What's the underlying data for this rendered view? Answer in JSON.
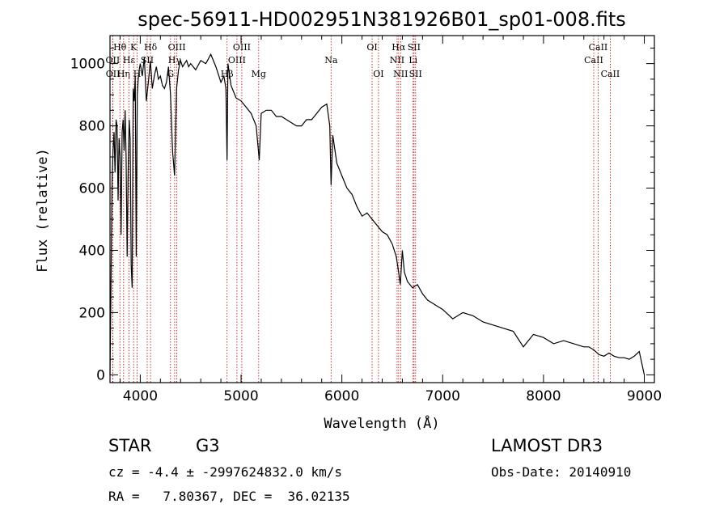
{
  "chart_data": {
    "type": "line",
    "title": "spec-56911-HD002951N381926B01_sp01-008.fits",
    "xlabel": "Wavelength (Å)",
    "ylabel": "Flux (relative)",
    "xlim": [
      3700,
      9100
    ],
    "ylim": [
      -25,
      1090
    ],
    "x_ticks": [
      4000,
      5000,
      6000,
      7000,
      8000,
      9000
    ],
    "y_ticks": [
      0,
      200,
      400,
      600,
      800,
      1000
    ],
    "grid": false,
    "series": [
      {
        "x": [
          3700,
          3710,
          3720,
          3730,
          3740,
          3750,
          3760,
          3770,
          3780,
          3790,
          3800,
          3810,
          3820,
          3830,
          3840,
          3850,
          3860,
          3870,
          3880,
          3890,
          3900,
          3910,
          3920,
          3930,
          3940,
          3950,
          3960,
          3970,
          3980,
          3990,
          4000,
          4020,
          4040,
          4060,
          4080,
          4100,
          4120,
          4140,
          4160,
          4180,
          4200,
          4220,
          4240,
          4260,
          4280,
          4300,
          4320,
          4340,
          4360,
          4380,
          4400,
          4420,
          4440,
          4460,
          4480,
          4500,
          4550,
          4600,
          4650,
          4700,
          4750,
          4800,
          4830,
          4850,
          4861,
          4870,
          4900,
          4950,
          5000,
          5050,
          5100,
          5150,
          5180,
          5200,
          5250,
          5300,
          5350,
          5400,
          5450,
          5500,
          5550,
          5600,
          5650,
          5700,
          5750,
          5800,
          5850,
          5880,
          5893,
          5910,
          5950,
          6000,
          6050,
          6100,
          6150,
          6200,
          6250,
          6300,
          6350,
          6400,
          6450,
          6500,
          6540,
          6563,
          6580,
          6600,
          6620,
          6650,
          6700,
          6750,
          6800,
          6850,
          6900,
          6950,
          7000,
          7100,
          7200,
          7300,
          7400,
          7500,
          7600,
          7700,
          7800,
          7900,
          8000,
          8100,
          8200,
          8300,
          8400,
          8450,
          8500,
          8550,
          8600,
          8650,
          8700,
          8750,
          8800,
          8850,
          8900,
          8950,
          9000
        ],
        "y": [
          0,
          290,
          620,
          720,
          780,
          650,
          820,
          800,
          560,
          760,
          700,
          450,
          780,
          820,
          720,
          850,
          700,
          380,
          650,
          820,
          760,
          350,
          280,
          920,
          880,
          960,
          380,
          900,
          950,
          980,
          1000,
          960,
          1020,
          880,
          940,
          1010,
          920,
          960,
          990,
          950,
          960,
          930,
          920,
          940,
          990,
          900,
          720,
          640,
          920,
          980,
          1010,
          990,
          1000,
          1010,
          990,
          1000,
          980,
          1010,
          1000,
          1030,
          990,
          940,
          960,
          920,
          690,
          1000,
          930,
          890,
          880,
          860,
          840,
          800,
          690,
          840,
          850,
          850,
          830,
          830,
          820,
          810,
          800,
          800,
          820,
          820,
          840,
          860,
          870,
          800,
          610,
          770,
          680,
          640,
          600,
          580,
          540,
          510,
          520,
          500,
          480,
          460,
          450,
          420,
          380,
          330,
          290,
          400,
          330,
          300,
          280,
          290,
          260,
          240,
          230,
          220,
          210,
          180,
          200,
          190,
          170,
          160,
          150,
          140,
          90,
          130,
          120,
          100,
          110,
          100,
          90,
          90,
          80,
          65,
          60,
          70,
          60,
          55,
          55,
          50,
          60,
          75,
          0
        ]
      }
    ],
    "line_markers": [
      {
        "label": "Hθ",
        "x": 3798,
        "row": 1
      },
      {
        "label": "OII",
        "x": 3727,
        "row": 2
      },
      {
        "label": "OII",
        "x": 3729,
        "row": 3
      },
      {
        "label": "Hη",
        "x": 3835,
        "row": 3
      },
      {
        "label": "Hε",
        "x": 3889,
        "row": 2
      },
      {
        "label": "K",
        "x": 3934,
        "row": 1
      },
      {
        "label": "H",
        "x": 3969,
        "row": 3
      },
      {
        "label": "SII",
        "x": 4069,
        "row": 2
      },
      {
        "label": "Hδ",
        "x": 4102,
        "row": 1
      },
      {
        "label": "G",
        "x": 4300,
        "row": 3
      },
      {
        "label": "Hγ",
        "x": 4341,
        "row": 2
      },
      {
        "label": "OIII",
        "x": 4363,
        "row": 1
      },
      {
        "label": "Hβ",
        "x": 4861,
        "row": 3
      },
      {
        "label": "OIII",
        "x": 4959,
        "row": 2
      },
      {
        "label": "OIII",
        "x": 5007,
        "row": 1
      },
      {
        "label": "Mg",
        "x": 5175,
        "row": 3
      },
      {
        "label": "Na",
        "x": 5893,
        "row": 2
      },
      {
        "label": "OI",
        "x": 6300,
        "row": 1
      },
      {
        "label": "OI",
        "x": 6363,
        "row": 3
      },
      {
        "label": "NII",
        "x": 6548,
        "row": 2
      },
      {
        "label": "Hα",
        "x": 6563,
        "row": 1
      },
      {
        "label": "NII",
        "x": 6583,
        "row": 3
      },
      {
        "label": "Li",
        "x": 6707,
        "row": 2
      },
      {
        "label": "SII",
        "x": 6716,
        "row": 1
      },
      {
        "label": "SII",
        "x": 6731,
        "row": 3
      },
      {
        "label": "CaII",
        "x": 8498,
        "row": 2
      },
      {
        "label": "CaII",
        "x": 8542,
        "row": 1
      },
      {
        "label": "CaII",
        "x": 8662,
        "row": 3
      }
    ],
    "marker_color": "#c00000"
  },
  "info": {
    "object_class": "STAR",
    "subclass": "G3",
    "survey": "LAMOST DR3",
    "cz": "cz = -4.4 ± -2997624832.0 km/s",
    "obs_date": "Obs-Date: 20140910",
    "radec": "RA =   7.80367, DEC =  36.02135"
  }
}
